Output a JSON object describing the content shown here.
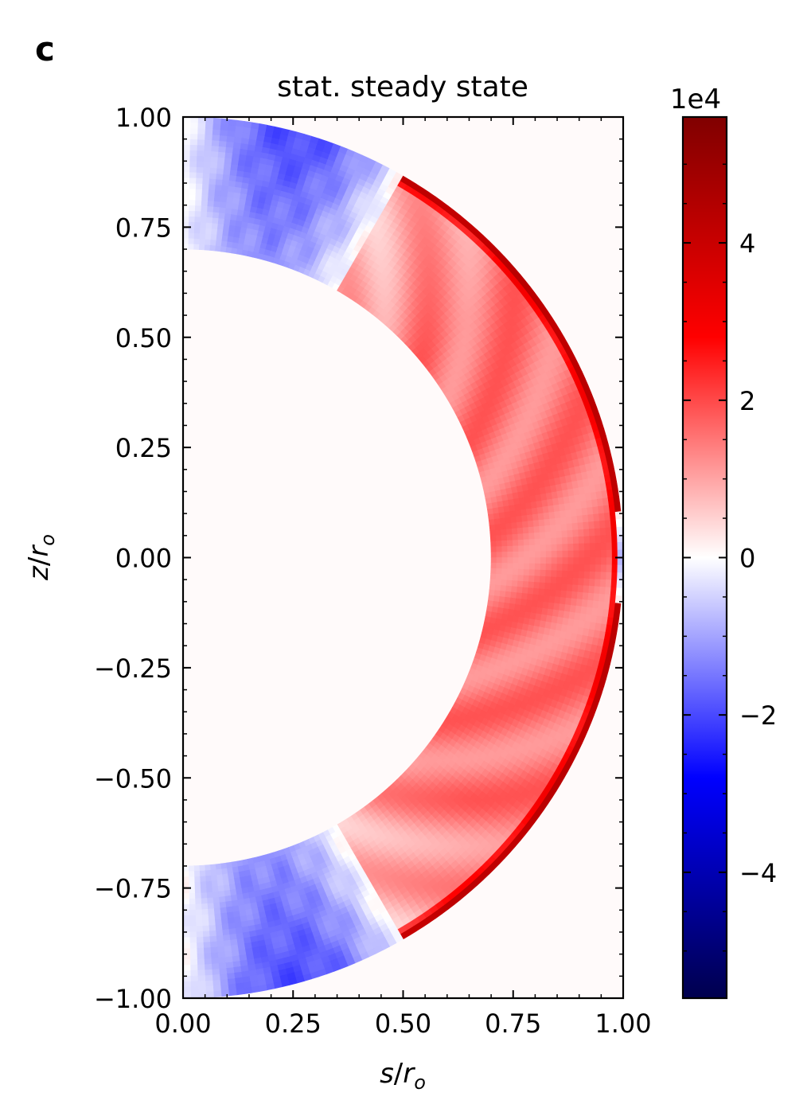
{
  "panel_label": "c",
  "chart_data": {
    "type": "heatmap",
    "title": "stat. steady state",
    "xlabel": "s/r_o",
    "ylabel": "z/r_o",
    "x_label_main": "s",
    "x_label_sub": "o",
    "y_label_main": "z",
    "y_label_sub": "o",
    "xlim": [
      0.0,
      1.0
    ],
    "ylim": [
      -1.0,
      1.0
    ],
    "x_ticks": [
      0.0,
      0.25,
      0.5,
      0.75,
      1.0
    ],
    "x_tick_labels": [
      "0.00",
      "0.25",
      "0.50",
      "0.75",
      "1.00"
    ],
    "y_ticks": [
      1.0,
      0.75,
      0.5,
      0.25,
      0.0,
      -0.25,
      -0.5,
      -0.75,
      -1.0
    ],
    "y_tick_labels": [
      "1.00",
      "0.75",
      "0.50",
      "0.25",
      "0.00",
      "−0.25",
      "−0.50",
      "−0.75",
      "−1.00"
    ],
    "domain": {
      "shape": "spherical shell meridional half-section",
      "inner_radius": 0.7,
      "outer_radius": 1.0
    },
    "field_description": {
      "blue_region_polar_angle_from_axis_deg": 30,
      "blue_min_value": -20000,
      "red_band_value": 15000,
      "red_outer_edge_max_value": 50000,
      "equatorial_outer_edge_blue": true
    },
    "colorbar": {
      "colormap": "seismic",
      "vmin": -56000,
      "vmax": 56000,
      "multiplier_label": "1e4",
      "ticks": [
        4,
        2,
        0,
        -2,
        -4
      ],
      "tick_labels": [
        "4",
        "2",
        "0",
        "−2",
        "−4"
      ],
      "scale": 10000
    },
    "grid": false,
    "colors": {
      "negative": "#0000ff",
      "zero": "#ffffff",
      "positive": "#ff0000"
    }
  }
}
